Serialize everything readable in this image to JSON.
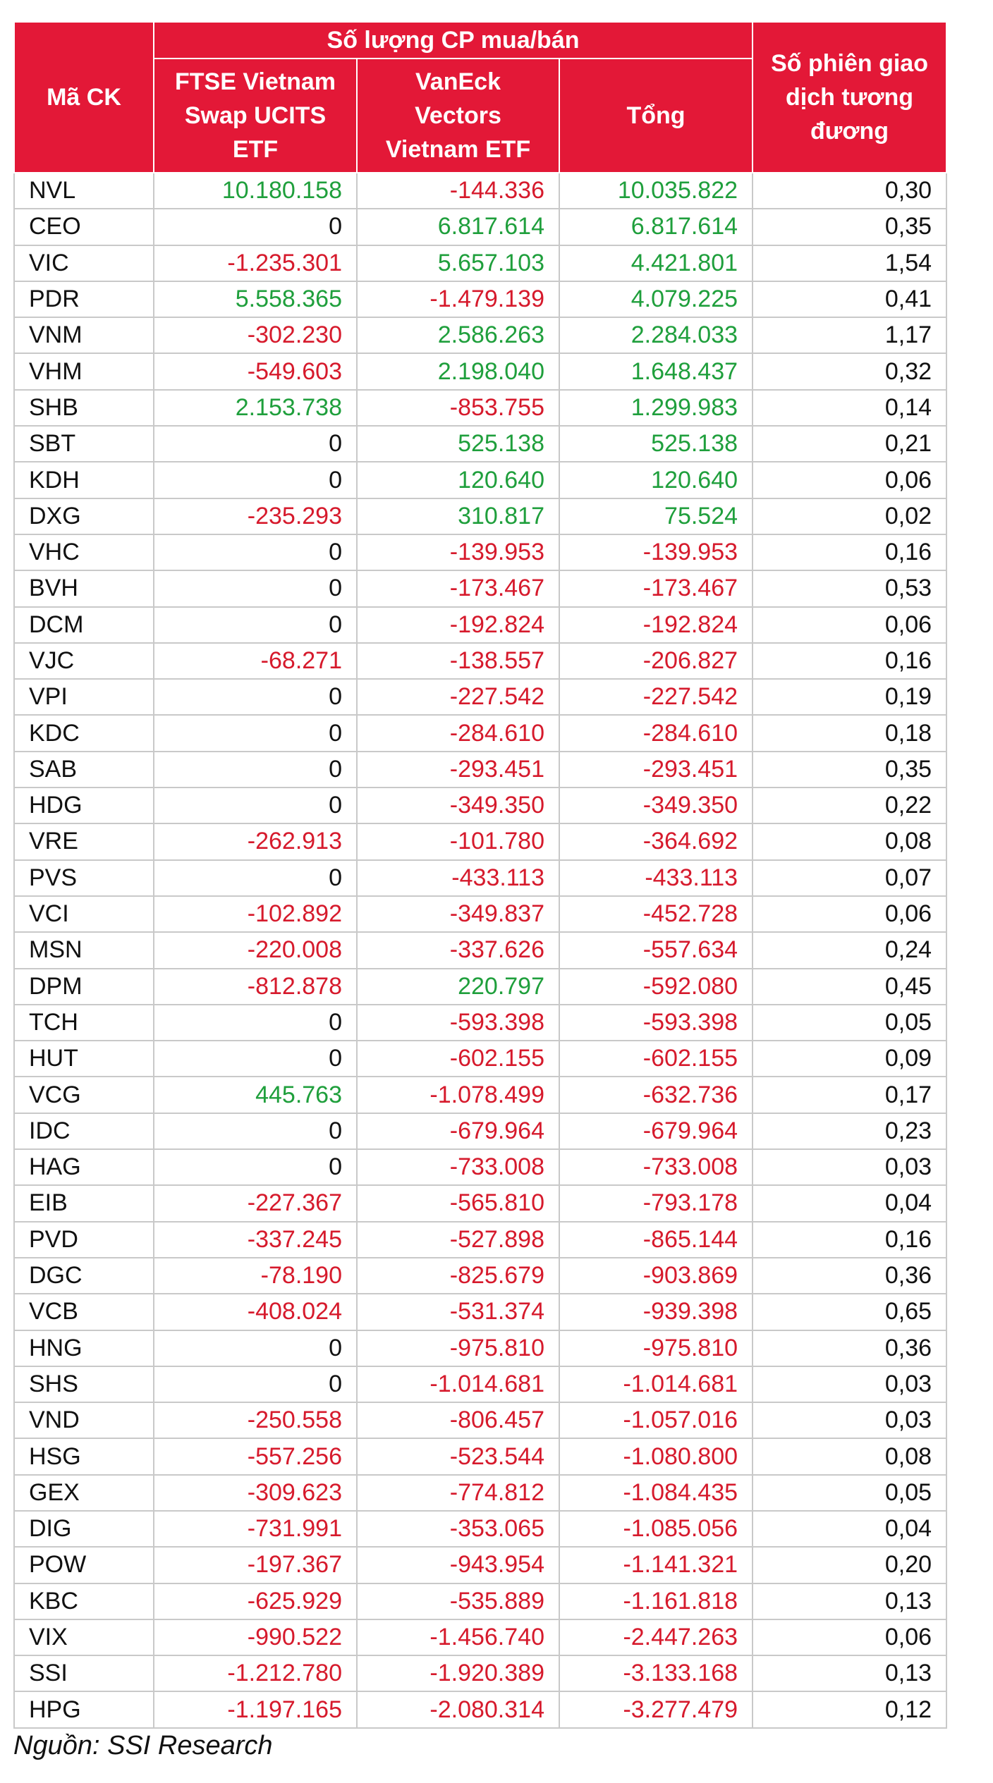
{
  "header": {
    "code": "Mã CK",
    "group": "Số lượng CP mua/bán",
    "ftse": "FTSE Vietnam Swap UCITS ETF",
    "vaneck": "VanEck Vectors Vietnam ETF",
    "total": "Tổng",
    "sessions": "Số phiên giao dịch tương đương"
  },
  "colors": {
    "header_bg": "#e31837",
    "positive": "#1f9f3c",
    "negative": "#d61a2c"
  },
  "rows": [
    {
      "code": "NVL",
      "ftse": "10.180.158",
      "vaneck": "-144.336",
      "total": "10.035.822",
      "sessions": "0,30"
    },
    {
      "code": "CEO",
      "ftse": "0",
      "vaneck": "6.817.614",
      "total": "6.817.614",
      "sessions": "0,35"
    },
    {
      "code": "VIC",
      "ftse": "-1.235.301",
      "vaneck": "5.657.103",
      "total": "4.421.801",
      "sessions": "1,54"
    },
    {
      "code": "PDR",
      "ftse": "5.558.365",
      "vaneck": "-1.479.139",
      "total": "4.079.225",
      "sessions": "0,41"
    },
    {
      "code": "VNM",
      "ftse": "-302.230",
      "vaneck": "2.586.263",
      "total": "2.284.033",
      "sessions": "1,17"
    },
    {
      "code": "VHM",
      "ftse": "-549.603",
      "vaneck": "2.198.040",
      "total": "1.648.437",
      "sessions": "0,32"
    },
    {
      "code": "SHB",
      "ftse": "2.153.738",
      "vaneck": "-853.755",
      "total": "1.299.983",
      "sessions": "0,14"
    },
    {
      "code": "SBT",
      "ftse": "0",
      "vaneck": "525.138",
      "total": "525.138",
      "sessions": "0,21"
    },
    {
      "code": "KDH",
      "ftse": "0",
      "vaneck": "120.640",
      "total": "120.640",
      "sessions": "0,06"
    },
    {
      "code": "DXG",
      "ftse": "-235.293",
      "vaneck": "310.817",
      "total": "75.524",
      "sessions": "0,02"
    },
    {
      "code": "VHC",
      "ftse": "0",
      "vaneck": "-139.953",
      "total": "-139.953",
      "sessions": "0,16"
    },
    {
      "code": "BVH",
      "ftse": "0",
      "vaneck": "-173.467",
      "total": "-173.467",
      "sessions": "0,53"
    },
    {
      "code": "DCM",
      "ftse": "0",
      "vaneck": "-192.824",
      "total": "-192.824",
      "sessions": "0,06"
    },
    {
      "code": "VJC",
      "ftse": "-68.271",
      "vaneck": "-138.557",
      "total": "-206.827",
      "sessions": "0,16"
    },
    {
      "code": "VPI",
      "ftse": "0",
      "vaneck": "-227.542",
      "total": "-227.542",
      "sessions": "0,19"
    },
    {
      "code": "KDC",
      "ftse": "0",
      "vaneck": "-284.610",
      "total": "-284.610",
      "sessions": "0,18"
    },
    {
      "code": "SAB",
      "ftse": "0",
      "vaneck": "-293.451",
      "total": "-293.451",
      "sessions": "0,35"
    },
    {
      "code": "HDG",
      "ftse": "0",
      "vaneck": "-349.350",
      "total": "-349.350",
      "sessions": "0,22"
    },
    {
      "code": "VRE",
      "ftse": "-262.913",
      "vaneck": "-101.780",
      "total": "-364.692",
      "sessions": "0,08"
    },
    {
      "code": "PVS",
      "ftse": "0",
      "vaneck": "-433.113",
      "total": "-433.113",
      "sessions": "0,07"
    },
    {
      "code": "VCI",
      "ftse": "-102.892",
      "vaneck": "-349.837",
      "total": "-452.728",
      "sessions": "0,06"
    },
    {
      "code": "MSN",
      "ftse": "-220.008",
      "vaneck": "-337.626",
      "total": "-557.634",
      "sessions": "0,24"
    },
    {
      "code": "DPM",
      "ftse": "-812.878",
      "vaneck": "220.797",
      "total": "-592.080",
      "sessions": "0,45"
    },
    {
      "code": "TCH",
      "ftse": "0",
      "vaneck": "-593.398",
      "total": "-593.398",
      "sessions": "0,05"
    },
    {
      "code": "HUT",
      "ftse": "0",
      "vaneck": "-602.155",
      "total": "-602.155",
      "sessions": "0,09"
    },
    {
      "code": "VCG",
      "ftse": "445.763",
      "vaneck": "-1.078.499",
      "total": "-632.736",
      "sessions": "0,17"
    },
    {
      "code": "IDC",
      "ftse": "0",
      "vaneck": "-679.964",
      "total": "-679.964",
      "sessions": "0,23"
    },
    {
      "code": "HAG",
      "ftse": "0",
      "vaneck": "-733.008",
      "total": "-733.008",
      "sessions": "0,03"
    },
    {
      "code": "EIB",
      "ftse": "-227.367",
      "vaneck": "-565.810",
      "total": "-793.178",
      "sessions": "0,04"
    },
    {
      "code": "PVD",
      "ftse": "-337.245",
      "vaneck": "-527.898",
      "total": "-865.144",
      "sessions": "0,16"
    },
    {
      "code": "DGC",
      "ftse": "-78.190",
      "vaneck": "-825.679",
      "total": "-903.869",
      "sessions": "0,36"
    },
    {
      "code": "VCB",
      "ftse": "-408.024",
      "vaneck": "-531.374",
      "total": "-939.398",
      "sessions": "0,65"
    },
    {
      "code": "HNG",
      "ftse": "0",
      "vaneck": "-975.810",
      "total": "-975.810",
      "sessions": "0,36"
    },
    {
      "code": "SHS",
      "ftse": "0",
      "vaneck": "-1.014.681",
      "total": "-1.014.681",
      "sessions": "0,03"
    },
    {
      "code": "VND",
      "ftse": "-250.558",
      "vaneck": "-806.457",
      "total": "-1.057.016",
      "sessions": "0,03"
    },
    {
      "code": "HSG",
      "ftse": "-557.256",
      "vaneck": "-523.544",
      "total": "-1.080.800",
      "sessions": "0,08"
    },
    {
      "code": "GEX",
      "ftse": "-309.623",
      "vaneck": "-774.812",
      "total": "-1.084.435",
      "sessions": "0,05"
    },
    {
      "code": "DIG",
      "ftse": "-731.991",
      "vaneck": "-353.065",
      "total": "-1.085.056",
      "sessions": "0,04"
    },
    {
      "code": "POW",
      "ftse": "-197.367",
      "vaneck": "-943.954",
      "total": "-1.141.321",
      "sessions": "0,20"
    },
    {
      "code": "KBC",
      "ftse": "-625.929",
      "vaneck": "-535.889",
      "total": "-1.161.818",
      "sessions": "0,13"
    },
    {
      "code": "VIX",
      "ftse": "-990.522",
      "vaneck": "-1.456.740",
      "total": "-2.447.263",
      "sessions": "0,06"
    },
    {
      "code": "SSI",
      "ftse": "-1.212.780",
      "vaneck": "-1.920.389",
      "total": "-3.133.168",
      "sessions": "0,13"
    },
    {
      "code": "HPG",
      "ftse": "-1.197.165",
      "vaneck": "-2.080.314",
      "total": "-3.277.479",
      "sessions": "0,12"
    }
  ],
  "source": "Nguồn: SSI Research"
}
